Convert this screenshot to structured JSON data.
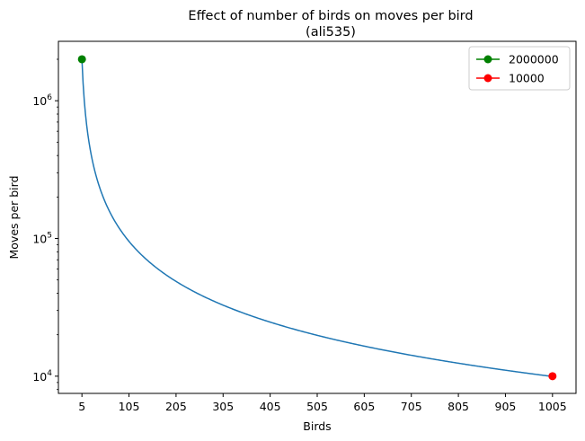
{
  "chart_data": {
    "type": "line",
    "title": "Effect of number of birds on moves per bird",
    "subtitle": "(ali535)",
    "xlabel": "Birds",
    "ylabel": "Moves per bird",
    "y_scale": "log",
    "xlim": [
      -45,
      1055
    ],
    "ylim": [
      7500,
      2700000
    ],
    "x_ticks": [
      5,
      105,
      205,
      305,
      405,
      505,
      605,
      705,
      805,
      905,
      1005
    ],
    "y_ticks": [
      {
        "value": 10000,
        "base": "10",
        "exp": "4"
      },
      {
        "value": 100000,
        "base": "10",
        "exp": "5"
      },
      {
        "value": 1000000,
        "base": "10",
        "exp": "6"
      }
    ],
    "grid": false,
    "legend_position": "top-right",
    "curve": {
      "color": "#1f77b4",
      "x_start": 5,
      "x_end": 1005,
      "numerator": 10000000
    },
    "series": [
      {
        "name": "2000000",
        "color": "#008000",
        "points": [
          {
            "x": 5,
            "y": 2000000
          }
        ]
      },
      {
        "name": "10000",
        "color": "#ff0000",
        "points": [
          {
            "x": 1005,
            "y": 10000
          }
        ]
      }
    ]
  }
}
